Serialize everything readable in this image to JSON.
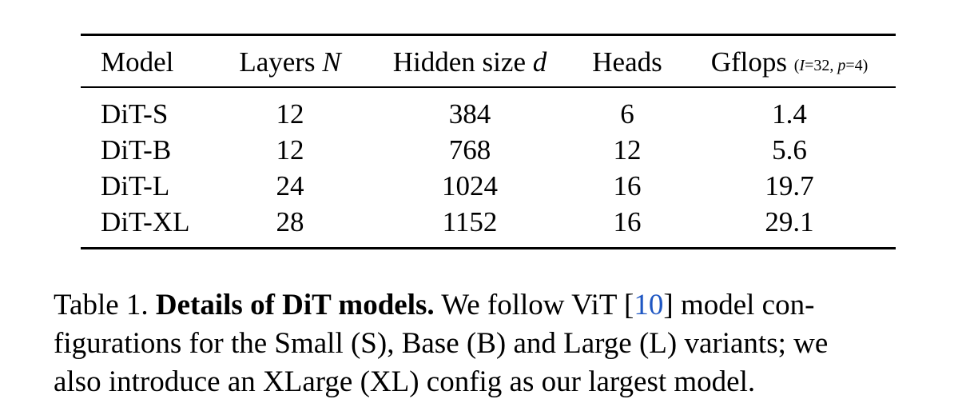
{
  "table": {
    "headers": {
      "model": "Model",
      "layers": "Layers",
      "layers_var": "N",
      "hidden": "Hidden size",
      "hidden_var": "d",
      "heads": "Heads",
      "gflops": "Gflops",
      "gflops_note_open": "(",
      "gflops_note_I": "I",
      "gflops_note_mid": "=32, ",
      "gflops_note_p": "p",
      "gflops_note_close": "=4)"
    },
    "rows": [
      {
        "model": "DiT-S",
        "layers": "12",
        "hidden": "384",
        "heads": "6",
        "gflops": "1.4"
      },
      {
        "model": "DiT-B",
        "layers": "12",
        "hidden": "768",
        "heads": "12",
        "gflops": "5.6"
      },
      {
        "model": "DiT-L",
        "layers": "24",
        "hidden": "1024",
        "heads": "16",
        "gflops": "19.7"
      },
      {
        "model": "DiT-XL",
        "layers": "28",
        "hidden": "1152",
        "heads": "16",
        "gflops": "29.1"
      }
    ]
  },
  "caption": {
    "label": "Table 1.",
    "title": "Details of DiT models.",
    "text_1a": "We follow ViT [",
    "cite": "10",
    "text_1b": "] model con-",
    "line_2": "figurations for the Small (S), Base (B) and Large (L) variants; we",
    "line_3": "also introduce an XLarge (XL) config as our largest model."
  }
}
